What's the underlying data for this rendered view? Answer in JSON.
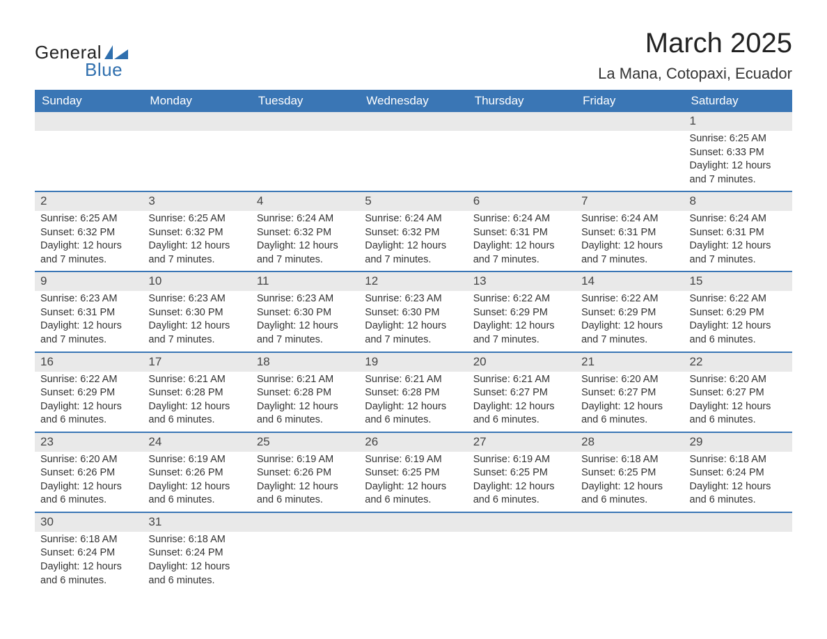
{
  "brand": {
    "part1": "General",
    "part2": "Blue"
  },
  "title": "March 2025",
  "location": "La Mana, Cotopaxi, Ecuador",
  "colors": {
    "header_bg": "#3a76b5",
    "header_text": "#ffffff",
    "daynum_bg": "#e9e9e9",
    "row_border": "#3a76b5",
    "text": "#333333",
    "brand_blue": "#2f6fae"
  },
  "fonts": {
    "title_size_pt": 30,
    "location_size_pt": 17,
    "header_size_pt": 13,
    "cell_size_pt": 11
  },
  "day_headers": [
    "Sunday",
    "Monday",
    "Tuesday",
    "Wednesday",
    "Thursday",
    "Friday",
    "Saturday"
  ],
  "weeks": [
    [
      null,
      null,
      null,
      null,
      null,
      null,
      {
        "n": "1",
        "sr": "Sunrise: 6:25 AM",
        "ss": "Sunset: 6:33 PM",
        "dl": "Daylight: 12 hours and 7 minutes."
      }
    ],
    [
      {
        "n": "2",
        "sr": "Sunrise: 6:25 AM",
        "ss": "Sunset: 6:32 PM",
        "dl": "Daylight: 12 hours and 7 minutes."
      },
      {
        "n": "3",
        "sr": "Sunrise: 6:25 AM",
        "ss": "Sunset: 6:32 PM",
        "dl": "Daylight: 12 hours and 7 minutes."
      },
      {
        "n": "4",
        "sr": "Sunrise: 6:24 AM",
        "ss": "Sunset: 6:32 PM",
        "dl": "Daylight: 12 hours and 7 minutes."
      },
      {
        "n": "5",
        "sr": "Sunrise: 6:24 AM",
        "ss": "Sunset: 6:32 PM",
        "dl": "Daylight: 12 hours and 7 minutes."
      },
      {
        "n": "6",
        "sr": "Sunrise: 6:24 AM",
        "ss": "Sunset: 6:31 PM",
        "dl": "Daylight: 12 hours and 7 minutes."
      },
      {
        "n": "7",
        "sr": "Sunrise: 6:24 AM",
        "ss": "Sunset: 6:31 PM",
        "dl": "Daylight: 12 hours and 7 minutes."
      },
      {
        "n": "8",
        "sr": "Sunrise: 6:24 AM",
        "ss": "Sunset: 6:31 PM",
        "dl": "Daylight: 12 hours and 7 minutes."
      }
    ],
    [
      {
        "n": "9",
        "sr": "Sunrise: 6:23 AM",
        "ss": "Sunset: 6:31 PM",
        "dl": "Daylight: 12 hours and 7 minutes."
      },
      {
        "n": "10",
        "sr": "Sunrise: 6:23 AM",
        "ss": "Sunset: 6:30 PM",
        "dl": "Daylight: 12 hours and 7 minutes."
      },
      {
        "n": "11",
        "sr": "Sunrise: 6:23 AM",
        "ss": "Sunset: 6:30 PM",
        "dl": "Daylight: 12 hours and 7 minutes."
      },
      {
        "n": "12",
        "sr": "Sunrise: 6:23 AM",
        "ss": "Sunset: 6:30 PM",
        "dl": "Daylight: 12 hours and 7 minutes."
      },
      {
        "n": "13",
        "sr": "Sunrise: 6:22 AM",
        "ss": "Sunset: 6:29 PM",
        "dl": "Daylight: 12 hours and 7 minutes."
      },
      {
        "n": "14",
        "sr": "Sunrise: 6:22 AM",
        "ss": "Sunset: 6:29 PM",
        "dl": "Daylight: 12 hours and 7 minutes."
      },
      {
        "n": "15",
        "sr": "Sunrise: 6:22 AM",
        "ss": "Sunset: 6:29 PM",
        "dl": "Daylight: 12 hours and 6 minutes."
      }
    ],
    [
      {
        "n": "16",
        "sr": "Sunrise: 6:22 AM",
        "ss": "Sunset: 6:29 PM",
        "dl": "Daylight: 12 hours and 6 minutes."
      },
      {
        "n": "17",
        "sr": "Sunrise: 6:21 AM",
        "ss": "Sunset: 6:28 PM",
        "dl": "Daylight: 12 hours and 6 minutes."
      },
      {
        "n": "18",
        "sr": "Sunrise: 6:21 AM",
        "ss": "Sunset: 6:28 PM",
        "dl": "Daylight: 12 hours and 6 minutes."
      },
      {
        "n": "19",
        "sr": "Sunrise: 6:21 AM",
        "ss": "Sunset: 6:28 PM",
        "dl": "Daylight: 12 hours and 6 minutes."
      },
      {
        "n": "20",
        "sr": "Sunrise: 6:21 AM",
        "ss": "Sunset: 6:27 PM",
        "dl": "Daylight: 12 hours and 6 minutes."
      },
      {
        "n": "21",
        "sr": "Sunrise: 6:20 AM",
        "ss": "Sunset: 6:27 PM",
        "dl": "Daylight: 12 hours and 6 minutes."
      },
      {
        "n": "22",
        "sr": "Sunrise: 6:20 AM",
        "ss": "Sunset: 6:27 PM",
        "dl": "Daylight: 12 hours and 6 minutes."
      }
    ],
    [
      {
        "n": "23",
        "sr": "Sunrise: 6:20 AM",
        "ss": "Sunset: 6:26 PM",
        "dl": "Daylight: 12 hours and 6 minutes."
      },
      {
        "n": "24",
        "sr": "Sunrise: 6:19 AM",
        "ss": "Sunset: 6:26 PM",
        "dl": "Daylight: 12 hours and 6 minutes."
      },
      {
        "n": "25",
        "sr": "Sunrise: 6:19 AM",
        "ss": "Sunset: 6:26 PM",
        "dl": "Daylight: 12 hours and 6 minutes."
      },
      {
        "n": "26",
        "sr": "Sunrise: 6:19 AM",
        "ss": "Sunset: 6:25 PM",
        "dl": "Daylight: 12 hours and 6 minutes."
      },
      {
        "n": "27",
        "sr": "Sunrise: 6:19 AM",
        "ss": "Sunset: 6:25 PM",
        "dl": "Daylight: 12 hours and 6 minutes."
      },
      {
        "n": "28",
        "sr": "Sunrise: 6:18 AM",
        "ss": "Sunset: 6:25 PM",
        "dl": "Daylight: 12 hours and 6 minutes."
      },
      {
        "n": "29",
        "sr": "Sunrise: 6:18 AM",
        "ss": "Sunset: 6:24 PM",
        "dl": "Daylight: 12 hours and 6 minutes."
      }
    ],
    [
      {
        "n": "30",
        "sr": "Sunrise: 6:18 AM",
        "ss": "Sunset: 6:24 PM",
        "dl": "Daylight: 12 hours and 6 minutes."
      },
      {
        "n": "31",
        "sr": "Sunrise: 6:18 AM",
        "ss": "Sunset: 6:24 PM",
        "dl": "Daylight: 12 hours and 6 minutes."
      },
      null,
      null,
      null,
      null,
      null
    ]
  ]
}
